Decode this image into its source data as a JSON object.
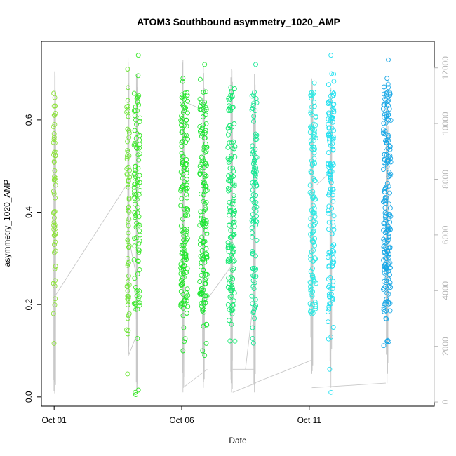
{
  "chart_data": {
    "type": "scatter",
    "title": "ATOM3 Southbound asymmetry_1020_AMP",
    "xlabel": "Date",
    "ylabel": "asymmetry_1020_AMP",
    "x_unit": "days (October)",
    "xlim": [
      0.5,
      15.9
    ],
    "ylim": [
      -0.02,
      0.77
    ],
    "x_ticks": [
      {
        "value": 1,
        "label": "Oct 01"
      },
      {
        "value": 6,
        "label": "Oct 06"
      },
      {
        "value": 11,
        "label": "Oct 11"
      }
    ],
    "y_ticks": [
      0.0,
      0.2,
      0.4,
      0.6
    ],
    "y2lim": [
      -150,
      12950
    ],
    "y2_ticks": [
      0,
      2000,
      4000,
      6000,
      8000,
      10000,
      12000
    ],
    "y2_color": "#b8b8b8",
    "line_color": "#c8c8c8",
    "grid": false,
    "marker": "open-circle",
    "clusters": [
      {
        "day": 1.02,
        "width": 0.05,
        "color": "#8ee33c",
        "seed": 11,
        "count": 45,
        "points": [
          [
            1.0,
            0.63
          ],
          [
            1.0,
            0.61
          ],
          [
            1.02,
            0.59
          ],
          [
            1.0,
            0.57
          ],
          [
            1.03,
            0.55
          ],
          [
            1.01,
            0.53
          ],
          [
            1.0,
            0.51
          ],
          [
            1.02,
            0.49
          ],
          [
            1.0,
            0.47
          ],
          [
            1.0,
            0.44
          ],
          [
            1.0,
            0.4
          ],
          [
            1.0,
            0.35
          ],
          [
            1.01,
            0.33
          ]
        ]
      },
      {
        "day": 3.9,
        "width": 0.06,
        "color": "#6fe638",
        "seed": 23,
        "count": 55,
        "points": [
          [
            3.88,
            0.71
          ],
          [
            3.9,
            0.67
          ],
          [
            3.9,
            0.63
          ],
          [
            3.88,
            0.58
          ],
          [
            3.9,
            0.53
          ],
          [
            3.89,
            0.46
          ],
          [
            3.9,
            0.41
          ],
          [
            3.88,
            0.34
          ],
          [
            3.89,
            0.3
          ],
          [
            3.9,
            0.25
          ],
          [
            3.88,
            0.23
          ],
          [
            3.89,
            0.17
          ],
          [
            3.88,
            0.05
          ]
        ]
      },
      {
        "day": 4.25,
        "width": 0.12,
        "color": "#3be82a",
        "seed": 37,
        "count": 95,
        "points": [
          [
            4.3,
            0.74
          ],
          [
            4.28,
            0.65
          ],
          [
            4.25,
            0.62
          ],
          [
            4.2,
            0.6
          ],
          [
            4.25,
            0.57
          ],
          [
            4.22,
            0.54
          ],
          [
            4.18,
            0.01
          ],
          [
            4.2,
            0.005
          ],
          [
            4.3,
            0.015
          ]
        ]
      },
      {
        "day": 6.1,
        "width": 0.14,
        "color": "#22e62a",
        "seed": 41,
        "count": 150,
        "points": [
          [
            6.05,
            0.69
          ],
          [
            6.08,
            0.65
          ],
          [
            6.1,
            0.62
          ],
          [
            6.05,
            0.1
          ],
          [
            6.1,
            0.12
          ],
          [
            6.08,
            0.15
          ]
        ]
      },
      {
        "day": 6.85,
        "width": 0.15,
        "color": "#1ee634",
        "seed": 53,
        "count": 150,
        "points": [
          [
            6.9,
            0.72
          ],
          [
            6.85,
            0.66
          ],
          [
            6.88,
            0.62
          ],
          [
            6.82,
            0.1
          ],
          [
            6.9,
            0.09
          ]
        ]
      },
      {
        "day": 7.95,
        "width": 0.14,
        "color": "#16e870",
        "seed": 67,
        "count": 130,
        "points": [
          [
            7.95,
            0.66
          ],
          [
            7.92,
            0.62
          ],
          [
            7.98,
            0.18
          ],
          [
            8.0,
            0.2
          ]
        ]
      },
      {
        "day": 8.85,
        "width": 0.1,
        "color": "#14e894",
        "seed": 71,
        "count": 95,
        "points": [
          [
            8.9,
            0.72
          ],
          [
            8.85,
            0.66
          ],
          [
            8.88,
            0.62
          ],
          [
            8.85,
            0.17
          ]
        ]
      },
      {
        "day": 11.15,
        "width": 0.12,
        "color": "#2ee8e2",
        "seed": 83,
        "count": 120,
        "points": [
          [
            11.2,
            0.68
          ],
          [
            11.18,
            0.66
          ],
          [
            11.1,
            0.18
          ],
          [
            11.12,
            0.2
          ]
        ]
      },
      {
        "day": 11.85,
        "width": 0.12,
        "color": "#22e0f0",
        "seed": 97,
        "count": 130,
        "points": [
          [
            11.85,
            0.74
          ],
          [
            11.88,
            0.7
          ],
          [
            11.9,
            0.66
          ],
          [
            11.85,
            0.13
          ],
          [
            11.8,
            0.06
          ],
          [
            11.85,
            0.01
          ]
        ]
      },
      {
        "day": 14.05,
        "width": 0.15,
        "color": "#1aa8e6",
        "seed": 101,
        "count": 185,
        "points": [
          [
            14.1,
            0.73
          ],
          [
            14.05,
            0.69
          ],
          [
            14.1,
            0.67
          ],
          [
            14.08,
            0.64
          ],
          [
            14.0,
            0.17
          ],
          [
            14.05,
            0.12
          ],
          [
            14.12,
            0.12
          ]
        ]
      }
    ],
    "gray_series": {
      "name": "",
      "spikes": [
        {
          "x": 1.02,
          "lo": 0.008,
          "hi": 0.705
        },
        {
          "x": 3.9,
          "lo": 0.09,
          "hi": 0.735
        },
        {
          "x": 4.25,
          "lo": 0.01,
          "hi": 0.7
        },
        {
          "x": 6.05,
          "lo": 0.01,
          "hi": 0.73
        },
        {
          "x": 6.85,
          "lo": 0.02,
          "hi": 0.715
        },
        {
          "x": 7.95,
          "lo": 0.01,
          "hi": 0.71
        },
        {
          "x": 8.85,
          "lo": 0.01,
          "hi": 0.7
        },
        {
          "x": 11.1,
          "lo": 0.05,
          "hi": 0.69
        },
        {
          "x": 11.85,
          "lo": 0.02,
          "hi": 0.67
        },
        {
          "x": 14.05,
          "lo": 0.03,
          "hi": 0.64
        }
      ],
      "connectors": [
        [
          [
            1.05,
            0.22
          ],
          [
            3.85,
            0.46
          ]
        ],
        [
          [
            3.9,
            0.35
          ],
          [
            4.2,
            0.27
          ]
        ],
        [
          [
            3.92,
            0.09
          ],
          [
            4.2,
            0.13
          ]
        ],
        [
          [
            6.05,
            0.02
          ],
          [
            7.0,
            0.06
          ]
        ],
        [
          [
            6.1,
            0.64
          ],
          [
            6.9,
            0.62
          ]
        ],
        [
          [
            6.85,
            0.2
          ],
          [
            7.9,
            0.28
          ]
        ],
        [
          [
            8.0,
            0.01
          ],
          [
            8.9,
            0.03
          ]
        ],
        [
          [
            8.0,
            0.06
          ],
          [
            8.85,
            0.06
          ]
        ],
        [
          [
            8.5,
            0.06
          ],
          [
            8.9,
            0.25
          ]
        ],
        [
          [
            8.85,
            0.03
          ],
          [
            11.1,
            0.08
          ]
        ],
        [
          [
            11.1,
            0.02
          ],
          [
            14.0,
            0.03
          ]
        ],
        [
          [
            11.3,
            0.46
          ],
          [
            11.9,
            0.49
          ]
        ]
      ]
    }
  }
}
